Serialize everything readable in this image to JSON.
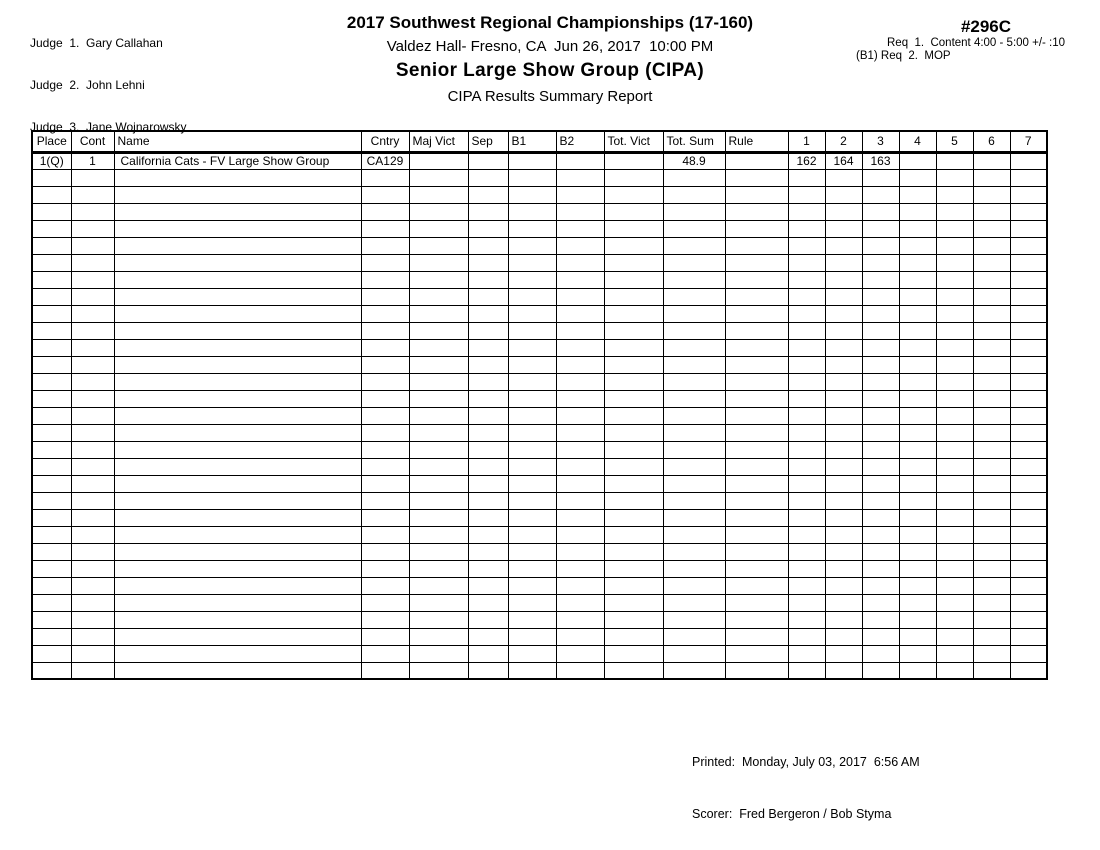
{
  "judges": [
    "Judge  1.  Gary Callahan",
    "Judge  2.  John Lehni",
    "Judge  3.  Jane Wojnarowsky"
  ],
  "header": {
    "title": "2017 Southwest Regional Championships (17-160)",
    "venue_line": "Valdez Hall- Fresno, CA  Jun 26, 2017  10:00 PM",
    "event_title": "Senior Large Show Group (CIPA)",
    "report_title": "CIPA Results Summary Report",
    "sheet_number": "#296C",
    "req_lines": [
      "Req  1.  Content 4:00 - 5:00 +/- :10",
      "(B1) Req  2.  MOP"
    ]
  },
  "table": {
    "columns": [
      "Place",
      "Cont",
      "Name",
      "Cntry",
      "Maj Vict",
      "Sep",
      "B1",
      "B2",
      "Tot. Vict",
      "Tot. Sum",
      "Rule",
      "1",
      "2",
      "3",
      "4",
      "5",
      "6",
      "7"
    ],
    "rows": [
      [
        "1(Q)",
        "1",
        "California Cats - FV Large Show Group",
        "CA129",
        "",
        "",
        "",
        "",
        "",
        "48.9",
        "",
        "162",
        "164",
        "163",
        "",
        "",
        "",
        ""
      ]
    ],
    "empty_row_count": 30
  },
  "footer": {
    "printed": "Printed:  Monday, July 03, 2017  6:56 AM",
    "scorer": "Scorer:  Fred Bergeron / Bob Styma"
  },
  "colors": {
    "text": "#000000",
    "background": "#ffffff",
    "grid": "#000000"
  }
}
